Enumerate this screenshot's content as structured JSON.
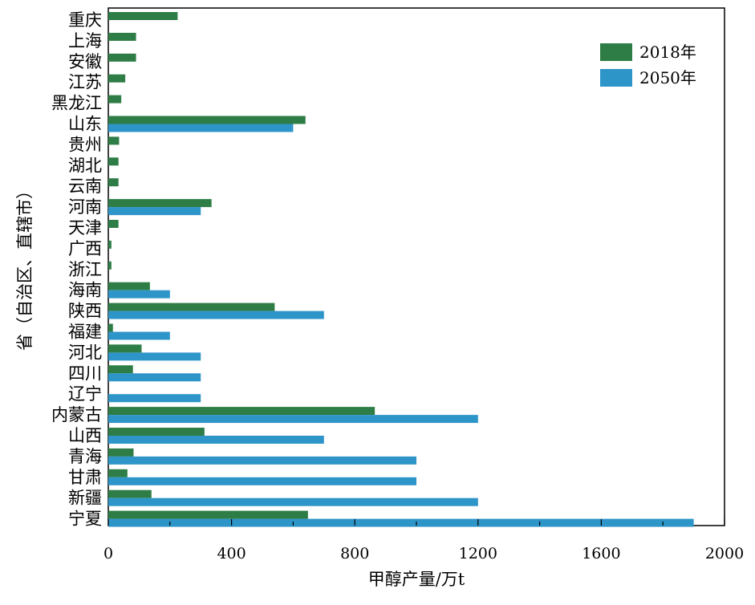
{
  "chart_data": {
    "type": "bar",
    "orientation": "horizontal",
    "categories": [
      "重庆",
      "上海",
      "安徽",
      "江苏",
      "黑龙江",
      "山东",
      "贵州",
      "湖北",
      "云南",
      "河南",
      "天津",
      "广西",
      "浙江",
      "海南",
      "陕西",
      "福建",
      "河北",
      "四川",
      "辽宁",
      "内蒙古",
      "山西",
      "青海",
      "甘肃",
      "新疆",
      "宁夏"
    ],
    "series": [
      {
        "name": "2018年",
        "color": "#2e7d46",
        "values": [
          225,
          90,
          90,
          55,
          42,
          640,
          35,
          33,
          33,
          335,
          33,
          10,
          10,
          135,
          540,
          15,
          108,
          80,
          0,
          865,
          312,
          82,
          62,
          140,
          648
        ]
      },
      {
        "name": "2050年",
        "color": "#2e95c9",
        "values": [
          null,
          null,
          null,
          null,
          null,
          600,
          null,
          null,
          null,
          300,
          null,
          null,
          null,
          200,
          700,
          200,
          300,
          300,
          300,
          1200,
          700,
          1000,
          1000,
          1200,
          1900
        ]
      }
    ],
    "xlabel": "甲醇产量/万t",
    "ylabel": "省（自治区、直辖市）",
    "xlim": [
      0,
      2000
    ],
    "xticks": [
      "0",
      "400",
      "800",
      "1200",
      "1600",
      "2000"
    ],
    "grid": false,
    "legend_position": "top-right"
  }
}
